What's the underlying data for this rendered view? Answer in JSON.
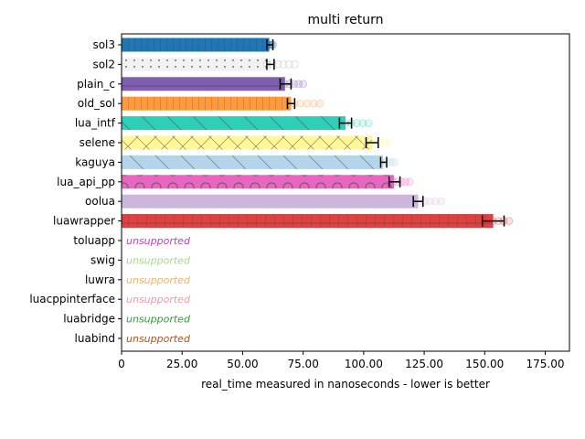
{
  "chart_data": {
    "type": "bar",
    "orientation": "horizontal",
    "title": "multi return",
    "xlabel": "real_time measured in nanoseconds - lower is better",
    "ylabel": "",
    "xlim": [
      0,
      185
    ],
    "x_ticks": [
      "0",
      "25.00",
      "50.00",
      "75.00",
      "100.00",
      "125.00",
      "150.00",
      "175.00"
    ],
    "x_tick_values": [
      0,
      25,
      50,
      75,
      100,
      125,
      150,
      175
    ],
    "grid": false,
    "categories": [
      "sol3",
      "sol2",
      "plain_c",
      "old_sol",
      "lua_intf",
      "selene",
      "kaguya",
      "lua_api_pp",
      "oolua",
      "luawrapper",
      "toluapp",
      "swig",
      "luwra",
      "luacppinterface",
      "luabridge",
      "luabind"
    ],
    "values": [
      61,
      61.5,
      67.5,
      70,
      92.5,
      103.5,
      108,
      112.5,
      122.5,
      153.5,
      null,
      null,
      null,
      null,
      null,
      null
    ],
    "error_low": [
      60,
      60,
      65.5,
      68.5,
      90,
      101,
      107,
      110.5,
      120.5,
      149
    ],
    "error_high": [
      62.5,
      63,
      70,
      71.5,
      95,
      106,
      109.5,
      115,
      124.5,
      158
    ],
    "scatter_spread": [
      62.5,
      71.5,
      75,
      82,
      102,
      110.5,
      113,
      119,
      132,
      160
    ],
    "colors": [
      "#1f77b4",
      "#f2f2f2",
      "#7f5fb0",
      "#ff9a3c",
      "#2ecfb8",
      "#fff799",
      "#b4d4ea",
      "#e866c2",
      "#cdb6db",
      "#e04040"
    ],
    "hatches": [
      "vertical",
      "dots",
      "horizontal",
      "vertical",
      "diagonal",
      "cross",
      "diagonal",
      "circles",
      "none",
      "grid"
    ],
    "unsupported_label": "unsupported",
    "unsupported_colors": [
      "#c03fc0",
      "#a6d98a",
      "#f5b266",
      "#f09aa6",
      "#2ca02c",
      "#b5501e"
    ]
  }
}
